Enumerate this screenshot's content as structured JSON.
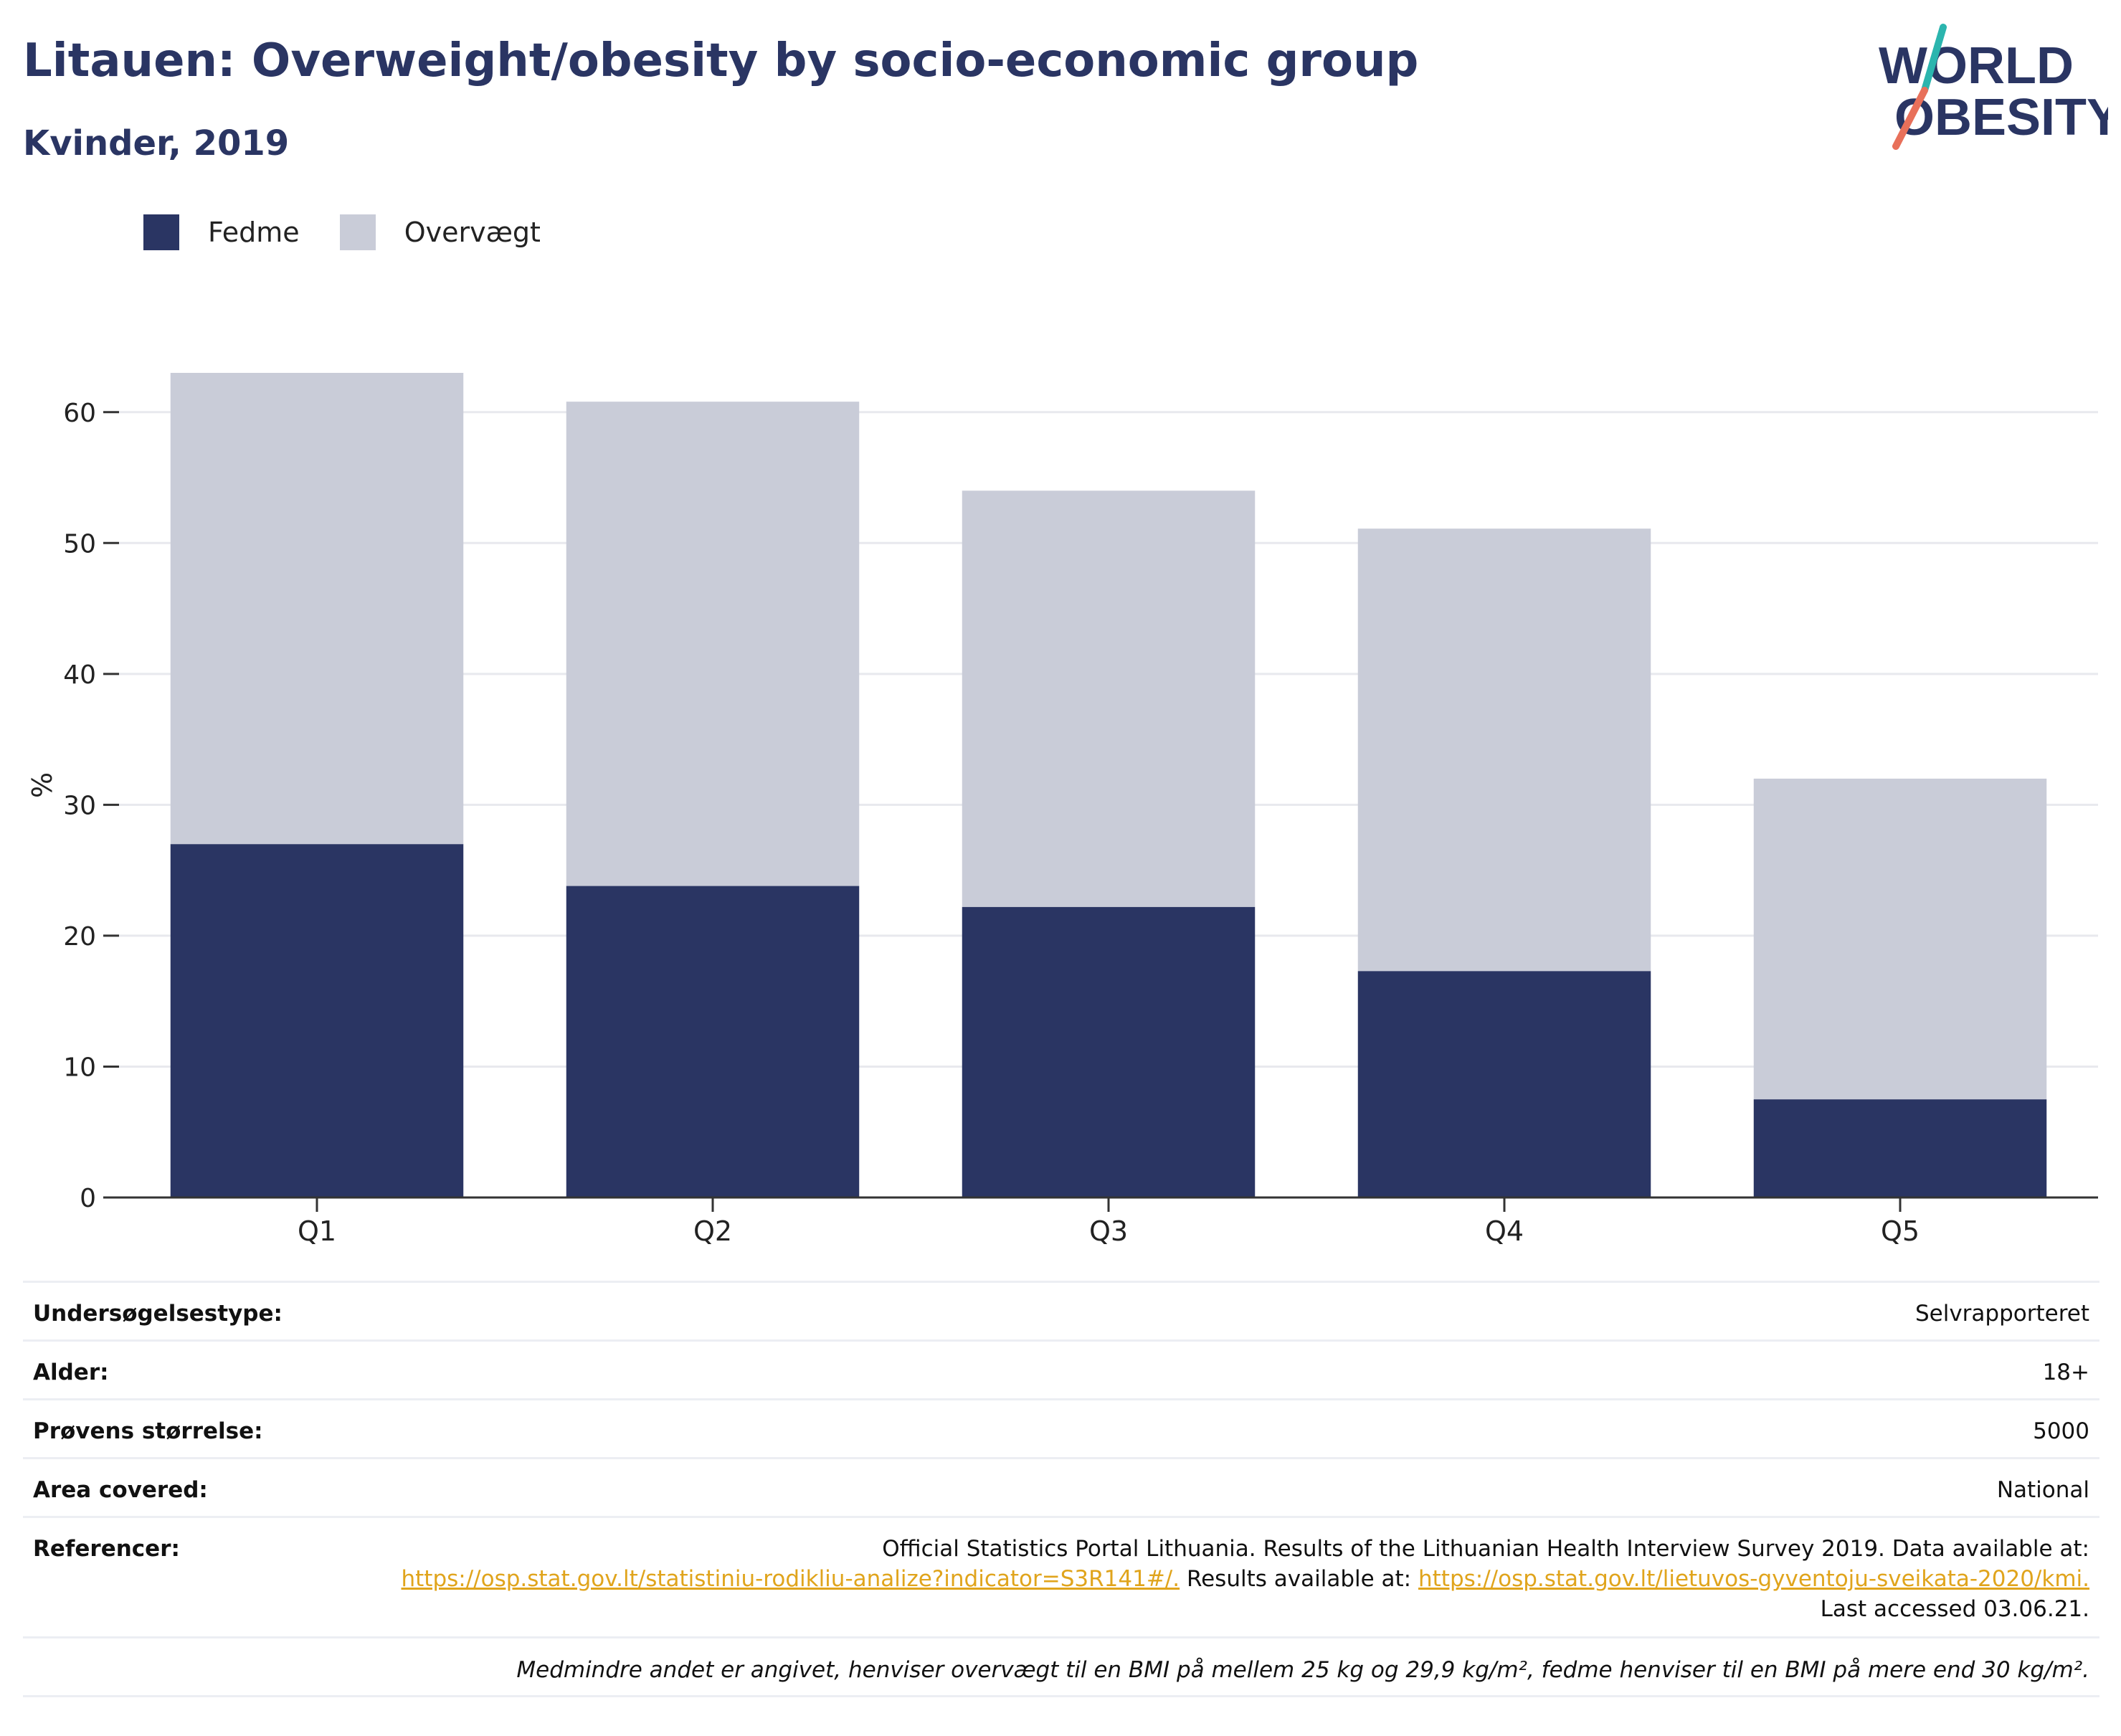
{
  "header": {
    "title": "Litauen: Overweight/obesity by socio-economic group",
    "subtitle": "Kvinder, 2019"
  },
  "logo": {
    "line1": "WORLD",
    "line2": "OBESITY"
  },
  "colors": {
    "obesity": "#2a3563",
    "overweight": "#c9ccd8",
    "title": "#2a3563",
    "link": "#e0a41c",
    "logo_teal": "#2bb5ae",
    "logo_coral": "#e8705a"
  },
  "legend": [
    {
      "label": "Fedme",
      "color": "#2a3563"
    },
    {
      "label": "Overvægt",
      "color": "#c9ccd8"
    }
  ],
  "chart_data": {
    "type": "bar",
    "stacked": true,
    "categories": [
      "Q1",
      "Q2",
      "Q3",
      "Q4",
      "Q5"
    ],
    "series": [
      {
        "name": "Fedme",
        "values": [
          27.0,
          23.8,
          22.2,
          17.3,
          7.5
        ]
      },
      {
        "name": "Overvægt",
        "values": [
          36.0,
          37.0,
          31.8,
          33.8,
          24.5
        ]
      }
    ],
    "ylabel": "%",
    "ylim": [
      0,
      63
    ],
    "yticks": [
      0,
      10,
      20,
      30,
      40,
      50,
      60
    ],
    "grid": true,
    "legend_position": "top-left"
  },
  "info": {
    "rows": [
      {
        "label": "Undersøgelsestype:",
        "value": "Selvrapporteret"
      },
      {
        "label": "Alder:",
        "value": "18+"
      },
      {
        "label": "Prøvens størrelse:",
        "value": "5000"
      },
      {
        "label": "Area covered:",
        "value": "National"
      }
    ],
    "references": {
      "label": "Referencer:",
      "text1": "Official Statistics Portal Lithuania. Results of the Lithuanian Health Interview Survey 2019. Data available at:",
      "link1": "https://osp.stat.gov.lt/statistiniu-rodikliu-analize?indicator=S3R141#/.",
      "text2": " Results available at: ",
      "link2": "https://osp.stat.gov.lt/lietuvos-gyventoju-sveikata-2020/kmi.",
      "text3": " Last accessed 03.06.21."
    },
    "note": "Medmindre andet er angivet, henviser overvægt til en BMI på mellem 25 kg og 29,9 kg/m², fedme henviser til en BMI på mere end 30 kg/m²."
  }
}
